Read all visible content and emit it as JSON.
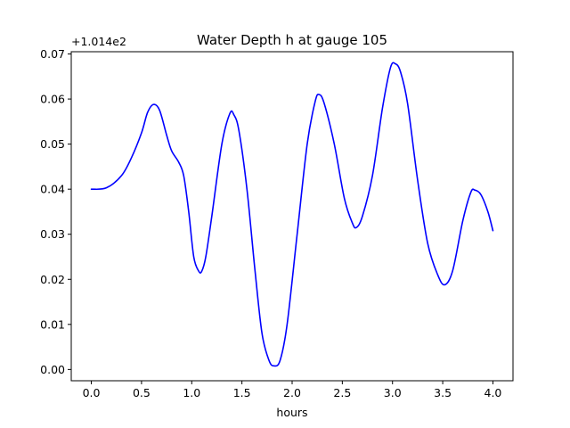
{
  "chart_data": {
    "type": "line",
    "title": "Water Depth h at gauge 105",
    "xlabel": "hours",
    "ylabel": "",
    "y_offset_label": "+1.014e2",
    "xlim": [
      -0.2,
      4.2
    ],
    "ylim": [
      -0.0025,
      0.0705
    ],
    "xticks": [
      0.0,
      0.5,
      1.0,
      1.5,
      2.0,
      2.5,
      3.0,
      3.5,
      4.0
    ],
    "xtick_labels": [
      "0.0",
      "0.5",
      "1.0",
      "1.5",
      "2.0",
      "2.5",
      "3.0",
      "3.5",
      "4.0"
    ],
    "yticks": [
      0.0,
      0.01,
      0.02,
      0.03,
      0.04,
      0.05,
      0.06,
      0.07
    ],
    "ytick_labels": [
      "0.00",
      "0.01",
      "0.02",
      "0.03",
      "0.04",
      "0.05",
      "0.06",
      "0.07"
    ],
    "grid": false,
    "series": [
      {
        "color": "#0000ff",
        "x": [
          0.0,
          0.15,
          0.3,
          0.4,
          0.5,
          0.56,
          0.62,
          0.68,
          0.75,
          0.8,
          0.87,
          0.92,
          0.97,
          1.02,
          1.07,
          1.1,
          1.14,
          1.2,
          1.3,
          1.38,
          1.42,
          1.47,
          1.55,
          1.63,
          1.7,
          1.77,
          1.82,
          1.88,
          1.95,
          2.05,
          2.15,
          2.23,
          2.27,
          2.32,
          2.42,
          2.52,
          2.6,
          2.64,
          2.7,
          2.8,
          2.9,
          2.98,
          3.03,
          3.08,
          3.15,
          3.25,
          3.35,
          3.45,
          3.52,
          3.6,
          3.7,
          3.78,
          3.82,
          3.88,
          3.95,
          4.0
        ],
        "y": [
          0.04,
          0.0403,
          0.043,
          0.047,
          0.0525,
          0.057,
          0.0588,
          0.0575,
          0.052,
          0.0485,
          0.046,
          0.043,
          0.035,
          0.025,
          0.0218,
          0.0218,
          0.025,
          0.034,
          0.05,
          0.0568,
          0.0565,
          0.053,
          0.04,
          0.022,
          0.008,
          0.002,
          0.0008,
          0.002,
          0.01,
          0.03,
          0.05,
          0.0595,
          0.061,
          0.059,
          0.05,
          0.038,
          0.0325,
          0.0315,
          0.034,
          0.043,
          0.058,
          0.067,
          0.0678,
          0.066,
          0.059,
          0.042,
          0.028,
          0.021,
          0.0188,
          0.022,
          0.033,
          0.0393,
          0.0398,
          0.0388,
          0.035,
          0.0308
        ]
      }
    ]
  }
}
